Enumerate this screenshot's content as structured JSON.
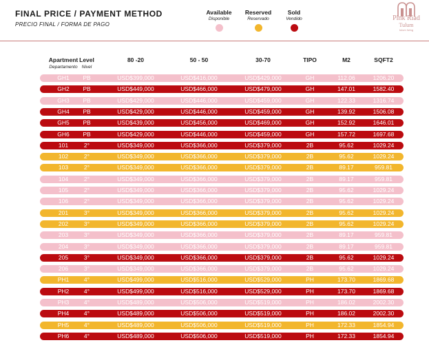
{
  "header": {
    "title": "FINAL PRICE /  PAYMENT METHOD",
    "subtitle": "PRECIO FINAL / FORMA DE PAGO"
  },
  "legend": [
    {
      "label": "Available",
      "sublabel": "Disponible",
      "color": "#f4c0cb",
      "status": "available"
    },
    {
      "label": "Reserved",
      "sublabel": "Reservado",
      "color": "#f2b62d",
      "status": "reserved"
    },
    {
      "label": "Sold",
      "sublabel": "Vendido",
      "color": "#bb0b10",
      "status": "sold"
    }
  ],
  "logo": {
    "main": "Pink Riad",
    "sub": "Tulum",
    "tag": "tulum living"
  },
  "columns": [
    {
      "label": "Apartment",
      "sublabel": "Departamento"
    },
    {
      "label": "Level",
      "sublabel": "Nivel"
    },
    {
      "label": "80 -20",
      "sublabel": ""
    },
    {
      "label": "50 - 50",
      "sublabel": ""
    },
    {
      "label": "30-70",
      "sublabel": ""
    },
    {
      "label": "TIPO",
      "sublabel": ""
    },
    {
      "label": "M2",
      "sublabel": ""
    },
    {
      "label": "SQFT2",
      "sublabel": ""
    }
  ],
  "rows": [
    {
      "status": "available",
      "cells": [
        "GH1",
        "PB",
        "USD$399,000",
        "USD$416,000",
        "USD$429,000",
        "GH",
        "112.06",
        "1206.20"
      ]
    },
    {
      "status": "sold",
      "cells": [
        "GH2",
        "PB",
        "USD$449,000",
        "USD$466,000",
        "USD$479,000",
        "GH",
        "147.01",
        "1582.40"
      ]
    },
    {
      "status": "available",
      "cells": [
        "GH3",
        "PB",
        "USD$429,000",
        "USD$446,000",
        "USD$459,000",
        "GH",
        "122.33",
        "1316.74"
      ]
    },
    {
      "status": "sold",
      "cells": [
        "GH4",
        "PB",
        "USD$429,000",
        "USD$446,000",
        "USD$459,000",
        "GH",
        "139.92",
        "1506.08"
      ]
    },
    {
      "status": "sold",
      "cells": [
        "GH5",
        "PB",
        "USD$439,000",
        "USD$456,000",
        "USD$469,000",
        "GH",
        "152.92",
        "1646.01"
      ]
    },
    {
      "status": "sold",
      "cells": [
        "GH6",
        "PB",
        "USD$429,000",
        "USD$446,000",
        "USD$459,000",
        "GH",
        "157.72",
        "1697.68"
      ]
    },
    {
      "status": "sold",
      "cells": [
        "101",
        "2°",
        "USD$349,000",
        "USD$366,000",
        "USD$379,000",
        "2B",
        "95.62",
        "1029.24"
      ]
    },
    {
      "status": "reserved",
      "cells": [
        "102",
        "2°",
        "USD$349,000",
        "USD$366,000",
        "USD$379,000",
        "2B",
        "95.62",
        "1029.24"
      ]
    },
    {
      "status": "reserved",
      "cells": [
        "103",
        "2°",
        "USD$349,000",
        "USD$366,000",
        "USD$379,000",
        "2B",
        "89.17",
        "959.81"
      ]
    },
    {
      "status": "available",
      "cells": [
        "104",
        "2°",
        "USD$349,000",
        "USD$366,000",
        "USD$379,000",
        "2B",
        "89.17",
        "959.81"
      ]
    },
    {
      "status": "available",
      "cells": [
        "105",
        "2°",
        "USD$349,000",
        "USD$366,000",
        "USD$379,000",
        "2B",
        "95.62",
        "1029.24"
      ]
    },
    {
      "status": "available",
      "cells": [
        "106",
        "2°",
        "USD$349,000",
        "USD$366,000",
        "USD$379,000",
        "2B",
        "95.62",
        "1029.24"
      ]
    },
    {
      "status": "reserved",
      "cells": [
        "201",
        "3°",
        "USD$349,000",
        "USD$366,000",
        "USD$379,000",
        "2B",
        "95.62",
        "1029.24"
      ]
    },
    {
      "status": "reserved",
      "cells": [
        "202",
        "3°",
        "USD$349,000",
        "USD$366,000",
        "USD$379,000",
        "2B",
        "95.62",
        "1029.24"
      ]
    },
    {
      "status": "available",
      "cells": [
        "203",
        "3°",
        "USD$349,000",
        "USD$366,000",
        "USD$379,000",
        "2B",
        "89.17",
        "959.81"
      ]
    },
    {
      "status": "available",
      "cells": [
        "204",
        "3°",
        "USD$349,000",
        "USD$366,000",
        "USD$379,000",
        "2B",
        "89.17",
        "959.81"
      ]
    },
    {
      "status": "sold",
      "cells": [
        "205",
        "3°",
        "USD$349,000",
        "USD$366,000",
        "USD$379,000",
        "2B",
        "95.62",
        "1029.24"
      ]
    },
    {
      "status": "available",
      "cells": [
        "206",
        "3°",
        "USD$349,000",
        "USD$366,000",
        "USD$379,000",
        "2B",
        "95.62",
        "1029.24"
      ]
    },
    {
      "status": "reserved",
      "cells": [
        "PH1",
        "4°",
        "USD$499,000",
        "USD$516,000",
        "USD$529,000",
        "PH",
        "173.70",
        "1869.68"
      ]
    },
    {
      "status": "sold",
      "cells": [
        "PH2",
        "4°",
        "USD$499,000",
        "USD$516,000",
        "USD$529,000",
        "PH",
        "173.70",
        "1869.68"
      ]
    },
    {
      "status": "available",
      "cells": [
        "PH3",
        "4°",
        "USD$489,000",
        "USD$506,000",
        "USD$519,000",
        "PH",
        "186.02",
        "2002.30"
      ]
    },
    {
      "status": "sold",
      "cells": [
        "PH4",
        "4°",
        "USD$489,000",
        "USD$506,000",
        "USD$519,000",
        "PH",
        "186.02",
        "2002.30"
      ]
    },
    {
      "status": "reserved",
      "cells": [
        "PH5",
        "4°",
        "USD$489,000",
        "USD$506,000",
        "USD$519,000",
        "PH",
        "172.33",
        "1854.94"
      ]
    },
    {
      "status": "sold",
      "cells": [
        "PH6",
        "4°",
        "USD$489,000",
        "USD$506,000",
        "USD$519,000",
        "PH",
        "172.33",
        "1854.94"
      ]
    }
  ]
}
